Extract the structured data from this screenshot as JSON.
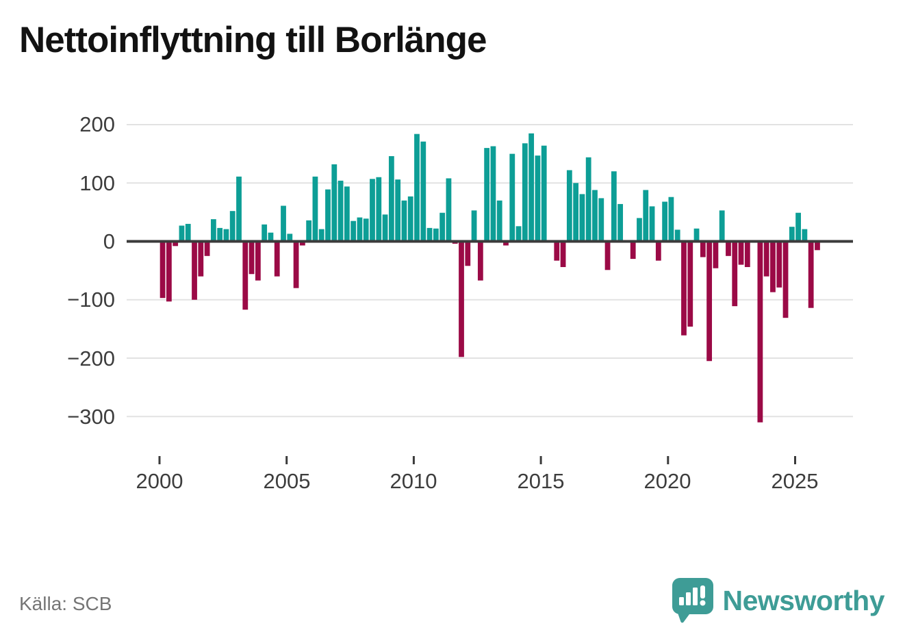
{
  "title": "Nettoinflyttning till Borlänge",
  "source_label": "Källa: SCB",
  "brand": {
    "name": "Newsworthy",
    "logo_icon": "speech-bubble-chart-icon",
    "color": "#3e9c96"
  },
  "colors": {
    "positive_bar": "#0d9e96",
    "negative_bar": "#9b0a46",
    "zero_line": "#3b3b3b",
    "gridline": "#e2e2e2",
    "tick_text": "#3d3d3d"
  },
  "chart_data": {
    "type": "bar",
    "title": "Nettoinflyttning till Borlänge",
    "xlabel": "",
    "ylabel": "",
    "legend": null,
    "grid": true,
    "ylim": [
      -330,
      215
    ],
    "y_ticks": [
      200,
      100,
      0,
      -100,
      -200,
      -300
    ],
    "y_tick_labels": [
      "200",
      "100",
      "0",
      "−100",
      "−200",
      "−300"
    ],
    "x_tick_years": [
      2000,
      2005,
      2010,
      2015,
      2020,
      2025
    ],
    "x_tick_labels": [
      "2000",
      "2005",
      "2010",
      "2015",
      "2020",
      "2025"
    ],
    "categories": [
      "2000 Q1",
      "2000 Q2",
      "2000 Q3",
      "2000 Q4",
      "2001 Q1",
      "2001 Q2",
      "2001 Q3",
      "2001 Q4",
      "2002 Q1",
      "2002 Q2",
      "2002 Q3",
      "2002 Q4",
      "2003 Q1",
      "2003 Q2",
      "2003 Q3",
      "2003 Q4",
      "2004 Q1",
      "2004 Q2",
      "2004 Q3",
      "2004 Q4",
      "2005 Q1",
      "2005 Q2",
      "2005 Q3",
      "2005 Q4",
      "2006 Q1",
      "2006 Q2",
      "2006 Q3",
      "2006 Q4",
      "2007 Q1",
      "2007 Q2",
      "2007 Q3",
      "2007 Q4",
      "2008 Q1",
      "2008 Q2",
      "2008 Q3",
      "2008 Q4",
      "2009 Q1",
      "2009 Q2",
      "2009 Q3",
      "2009 Q4",
      "2010 Q1",
      "2010 Q2",
      "2010 Q3",
      "2010 Q4",
      "2011 Q1",
      "2011 Q2",
      "2011 Q3",
      "2011 Q4",
      "2012 Q1",
      "2012 Q2",
      "2012 Q3",
      "2012 Q4",
      "2013 Q1",
      "2013 Q2",
      "2013 Q3",
      "2013 Q4",
      "2014 Q1",
      "2014 Q2",
      "2014 Q3",
      "2014 Q4",
      "2015 Q1",
      "2015 Q2",
      "2015 Q3",
      "2015 Q4",
      "2016 Q1",
      "2016 Q2",
      "2016 Q3",
      "2016 Q4",
      "2017 Q1",
      "2017 Q2",
      "2017 Q3",
      "2017 Q4",
      "2018 Q1",
      "2018 Q2",
      "2018 Q3",
      "2018 Q4",
      "2019 Q1",
      "2019 Q2",
      "2019 Q3",
      "2019 Q4",
      "2020 Q1",
      "2020 Q2",
      "2020 Q3",
      "2020 Q4",
      "2021 Q1",
      "2021 Q2",
      "2021 Q3",
      "2021 Q4",
      "2022 Q1",
      "2022 Q2",
      "2022 Q3",
      "2022 Q4",
      "2023 Q1",
      "2023 Q2",
      "2023 Q3",
      "2023 Q4",
      "2024 Q1",
      "2024 Q2",
      "2024 Q3",
      "2024 Q4",
      "2025 Q1",
      "2025 Q2",
      "2025 Q3",
      "2025 Q4"
    ],
    "values": [
      -97,
      -103,
      -8,
      27,
      30,
      -100,
      -60,
      -25,
      38,
      23,
      21,
      52,
      111,
      -117,
      -56,
      -67,
      29,
      15,
      -60,
      61,
      13,
      -80,
      -7,
      36,
      111,
      21,
      89,
      132,
      104,
      94,
      35,
      41,
      39,
      107,
      110,
      46,
      146,
      106,
      70,
      77,
      184,
      171,
      23,
      22,
      49,
      108,
      -4,
      -198,
      -42,
      53,
      -67,
      160,
      163,
      70,
      -7,
      150,
      26,
      168,
      185,
      147,
      164,
      0,
      -33,
      -44,
      122,
      100,
      81,
      144,
      88,
      74,
      -49,
      120,
      64,
      0,
      -30,
      40,
      88,
      60,
      -33,
      68,
      76,
      20,
      -161,
      -146,
      22,
      -27,
      -205,
      -46,
      53,
      -25,
      -111,
      -40,
      -44,
      0,
      -310,
      -60,
      -87,
      -79,
      -131,
      25,
      49,
      21,
      -114,
      -15
    ]
  }
}
